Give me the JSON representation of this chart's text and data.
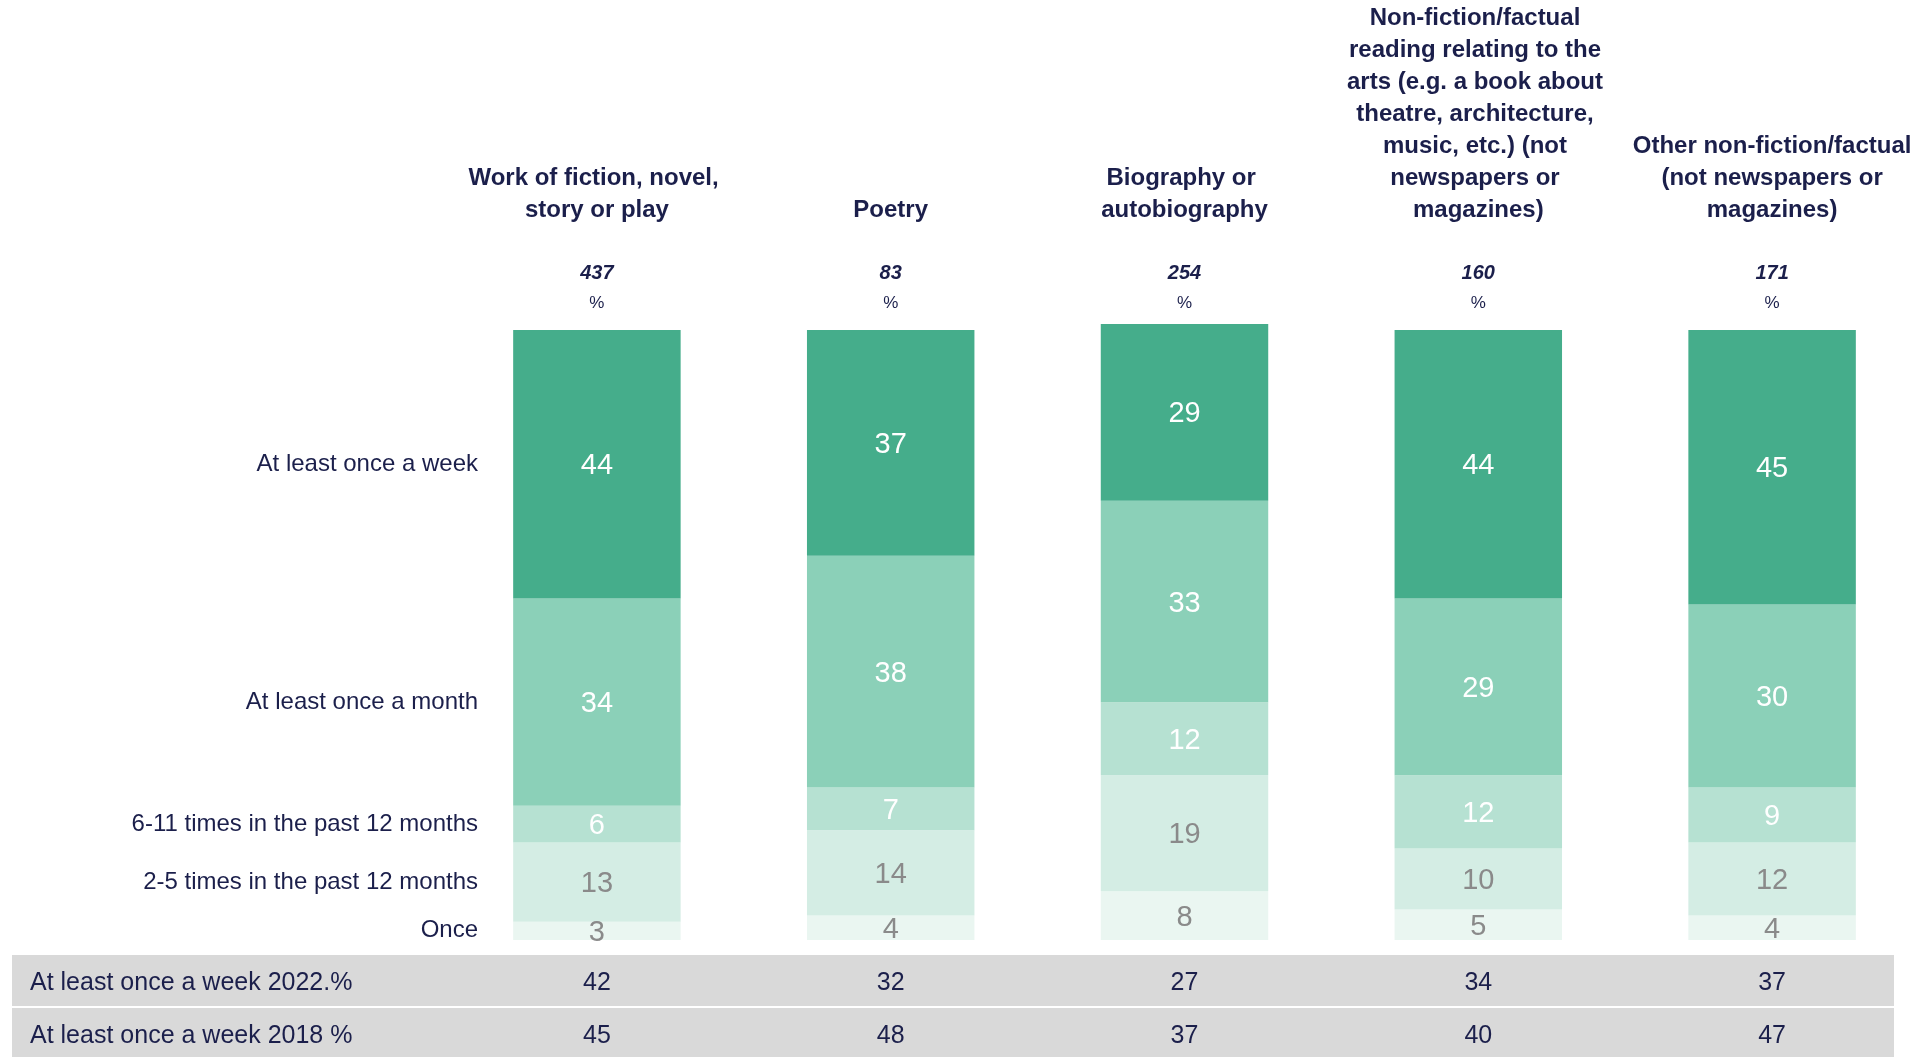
{
  "chart_data": {
    "type": "bar",
    "stacked": true,
    "data_labels": true,
    "legend": false,
    "categories": [
      "Work of fiction, novel, story or play",
      "Poetry",
      "Biography or autobiography",
      "Non-fiction/factual reading relating to the arts (e.g. a book about theatre, architecture, music, etc.) (not newspapers or magazines)",
      "Other non-fiction/factual (not newspapers or magazines)"
    ],
    "series": [
      {
        "name": "Once",
        "color": "#eaf6f1",
        "values": [
          3,
          4,
          8,
          5,
          4
        ]
      },
      {
        "name": "2-5 times in the past 12 months",
        "color": "#d4ede4",
        "values": [
          13,
          14,
          19,
          10,
          12
        ]
      },
      {
        "name": "6-11 times in the past 12 months",
        "color": "#b6e1d2",
        "values": [
          6,
          7,
          12,
          12,
          9
        ]
      },
      {
        "name": "At least once a month",
        "color": "#8bd0b8",
        "values": [
          34,
          38,
          33,
          29,
          30
        ]
      },
      {
        "name": "At least once a week",
        "color": "#45ad8b",
        "values": [
          44,
          37,
          29,
          44,
          45
        ]
      }
    ],
    "annotations": [
      "437",
      "83",
      "254",
      "160",
      "171",
      "%",
      "%",
      "%",
      "%",
      "%",
      "At least once a week 2022.%",
      "42",
      "32",
      "27",
      "34",
      "37",
      "At least once a week 2018 %",
      "45",
      "48",
      "37",
      "40",
      "47"
    ]
  }
}
